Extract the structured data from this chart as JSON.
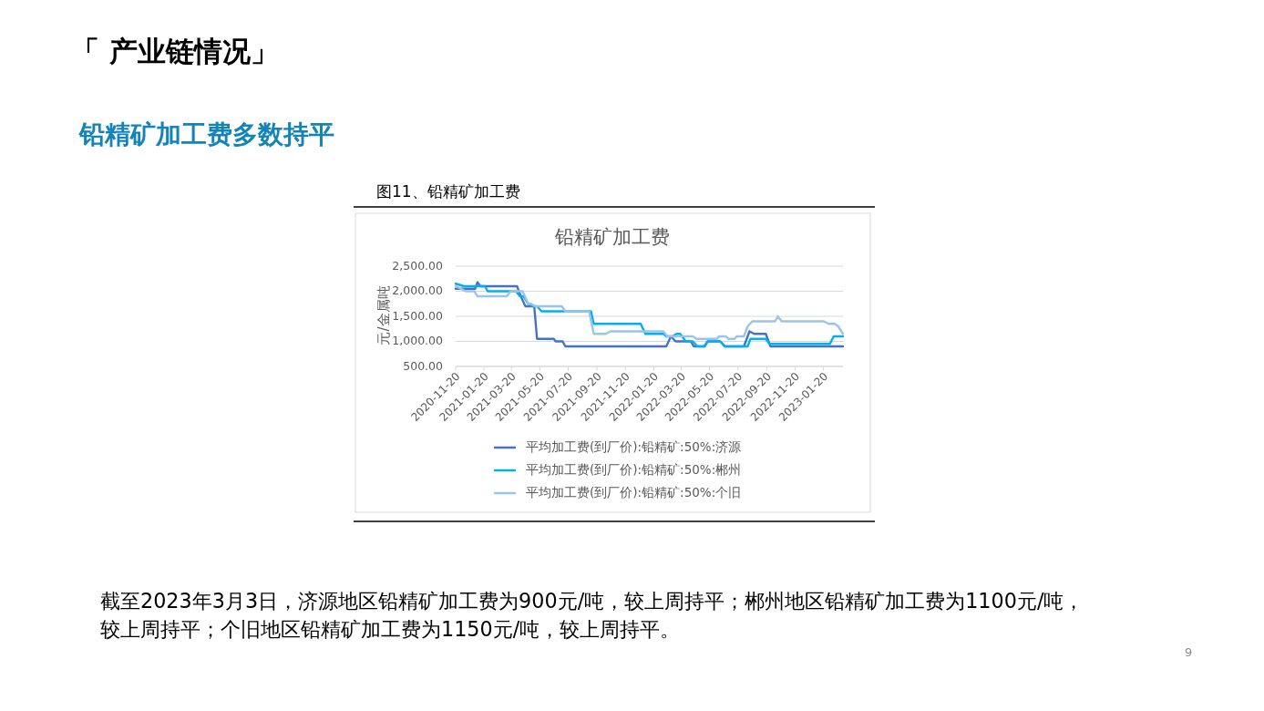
{
  "chart_data": {
    "type": "line",
    "title": "铅精矿加工费",
    "subtitle": "图11、铅精矿加工费",
    "ylabel": "元/金属吨",
    "annotations": [
      "「 产业链情况」",
      "铅精矿加工费多数持平",
      "截至2023年3月3日，济源地区铅精矿加工费为900元/吨，较上周持平；郴州地区铅精矿加工费为1100元/吨，较上周持平；个旧地区铅精矿加工费为1150元/吨，较上周持平。",
      "9"
    ],
    "xlim": [
      "2020-11-20",
      "2023-03-03"
    ],
    "xticks": [
      "2020-11-20",
      "2021-01-20",
      "2021-03-20",
      "2021-05-20",
      "2021-07-20",
      "2021-09-20",
      "2021-11-20",
      "2022-01-20",
      "2022-03-20",
      "2022-05-20",
      "2022-07-20",
      "2022-09-20",
      "2022-11-20",
      "2023-01-20"
    ],
    "ylim": [
      500,
      2500
    ],
    "yticks": [
      {
        "value": 500,
        "label": "500.00"
      },
      {
        "value": 1000,
        "label": "1,000.00"
      },
      {
        "value": 1500,
        "label": "1,500.00"
      },
      {
        "value": 2000,
        "label": "2,000.00"
      },
      {
        "value": 2500,
        "label": "2,500.00"
      }
    ],
    "grid": "y",
    "legend": "bottom",
    "series": [
      {
        "name": "平均加工费(到厂价):铅精矿:50%:济源",
        "color": "#4472c4",
        "x": [
          "2020-11-20",
          "2021-01-01",
          "2021-01-06",
          "2021-01-12",
          "2021-04-01",
          "2021-04-09",
          "2021-04-19",
          "2021-05-08",
          "2021-05-14",
          "2021-06-19",
          "2021-06-23",
          "2021-07-08",
          "2021-07-14",
          "2022-02-16",
          "2022-02-26",
          "2022-03-08",
          "2022-04-10",
          "2022-04-16",
          "2022-05-10",
          "2022-05-16",
          "2022-06-12",
          "2022-06-22",
          "2022-08-02",
          "2022-08-14",
          "2022-08-24",
          "2022-09-18",
          "2022-09-28",
          "2023-03-03"
        ],
        "values": [
          2050,
          2050,
          2180,
          2100,
          2100,
          1900,
          1700,
          1700,
          1050,
          1050,
          1000,
          1000,
          900,
          900,
          1100,
          1000,
          1000,
          900,
          900,
          1000,
          1000,
          900,
          900,
          1200,
          1150,
          1150,
          900,
          900
        ]
      },
      {
        "name": "平均加工费(到厂价):铅精矿:50%:郴州",
        "color": "#00b0f0",
        "x": [
          "2020-11-20",
          "2020-12-08",
          "2021-01-22",
          "2021-01-28",
          "2021-03-30",
          "2021-04-07",
          "2021-04-15",
          "2021-04-25",
          "2021-05-05",
          "2021-05-14",
          "2021-05-24",
          "2021-09-07",
          "2021-09-13",
          "2021-12-23",
          "2022-01-02",
          "2022-02-10",
          "2022-02-16",
          "2022-03-02",
          "2022-03-10",
          "2022-03-18",
          "2022-03-30",
          "2022-04-14",
          "2022-04-24",
          "2022-05-08",
          "2022-05-16",
          "2022-06-12",
          "2022-06-22",
          "2022-08-10",
          "2022-08-16",
          "2022-09-18",
          "2022-09-26",
          "2023-02-03",
          "2023-02-11",
          "2023-03-03"
        ],
        "values": [
          2150,
          2100,
          2100,
          2000,
          2000,
          1900,
          1900,
          1750,
          1700,
          1700,
          1600,
          1600,
          1350,
          1350,
          1150,
          1150,
          1100,
          1100,
          1150,
          1150,
          1000,
          1000,
          900,
          900,
          1000,
          1000,
          900,
          900,
          1050,
          1050,
          950,
          950,
          1100,
          1100
        ]
      },
      {
        "name": "平均加工费(到厂价):铅精矿:50%:个旧",
        "color": "#9dc3e6",
        "x": [
          "2020-11-20",
          "2020-12-12",
          "2020-12-30",
          "2021-01-06",
          "2021-03-10",
          "2021-03-18",
          "2021-04-13",
          "2021-04-25",
          "2021-05-01",
          "2021-05-10",
          "2021-07-06",
          "2021-07-14",
          "2021-09-03",
          "2021-09-13",
          "2021-10-09",
          "2021-10-19",
          "2022-02-10",
          "2022-02-18",
          "2022-04-14",
          "2022-04-22",
          "2022-06-04",
          "2022-06-10",
          "2022-06-24",
          "2022-06-30",
          "2022-07-12",
          "2022-07-18",
          "2022-08-02",
          "2022-08-10",
          "2022-08-20",
          "2022-10-08",
          "2022-10-14",
          "2022-10-22",
          "2023-01-21",
          "2023-01-31",
          "2023-02-13",
          "2023-02-21",
          "2023-03-03"
        ],
        "values": [
          2100,
          2000,
          2000,
          1900,
          1900,
          2000,
          2000,
          1750,
          1750,
          1700,
          1700,
          1600,
          1600,
          1150,
          1150,
          1200,
          1200,
          1100,
          1100,
          1050,
          1050,
          1100,
          1100,
          1050,
          1050,
          1100,
          1100,
          1300,
          1400,
          1400,
          1500,
          1400,
          1400,
          1350,
          1350,
          1300,
          1150
        ]
      }
    ]
  }
}
